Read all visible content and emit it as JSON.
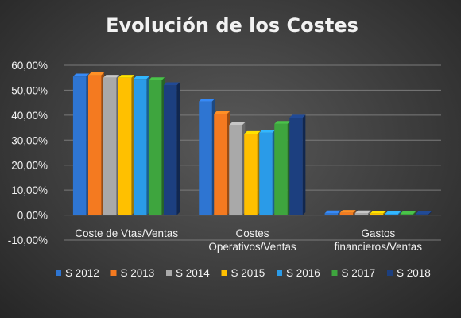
{
  "chart_data": {
    "type": "bar",
    "title": "Evolución de los Costes",
    "categories": [
      [
        "Coste de Vtas/Ventas"
      ],
      [
        "Costes",
        "Operativos/Ventas"
      ],
      [
        "Gastos",
        "financieros/Ventas"
      ]
    ],
    "series": [
      {
        "name": "S 2012",
        "color": "#2e75d2",
        "values": [
          55.5,
          45.5,
          0.7
        ]
      },
      {
        "name": "S 2013",
        "color": "#f47a20",
        "values": [
          56.0,
          40.5,
          0.9
        ]
      },
      {
        "name": "S 2014",
        "color": "#a9a9a9",
        "values": [
          55.0,
          36.0,
          0.7
        ]
      },
      {
        "name": "S 2015",
        "color": "#ffc000",
        "values": [
          55.0,
          32.5,
          0.6
        ]
      },
      {
        "name": "S 2016",
        "color": "#2a9be8",
        "values": [
          54.5,
          33.0,
          0.5
        ]
      },
      {
        "name": "S 2017",
        "color": "#3ea53e",
        "values": [
          54.0,
          36.5,
          0.5
        ]
      },
      {
        "name": "S 2018",
        "color": "#1c3f7f",
        "values": [
          52.0,
          39.0,
          0.3
        ]
      }
    ],
    "ylim": [
      -10,
      60
    ],
    "yticks": [
      60,
      50,
      40,
      30,
      20,
      10,
      0,
      -10
    ],
    "ytick_labels": [
      "60,00%",
      "50,00%",
      "40,00%",
      "30,00%",
      "20,00%",
      "10,00%",
      "0,00%",
      "-10,00%"
    ],
    "grid": true,
    "legend_position": "bottom"
  }
}
